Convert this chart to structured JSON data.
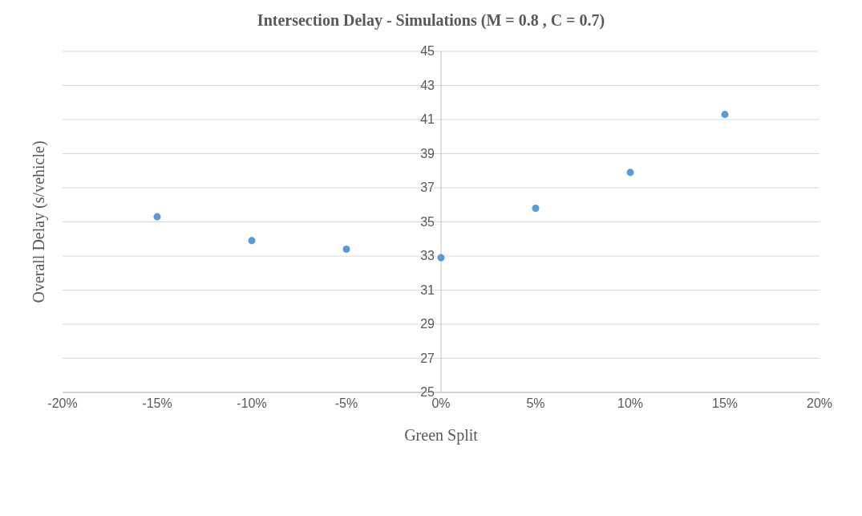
{
  "chart_data": {
    "type": "scatter",
    "title": "Intersection Delay - Simulations (M = 0.8 , C = 0.7)",
    "xlabel": "Green Split",
    "ylabel": "Overall Delay (s/vehicle)",
    "x": [
      -15,
      -10,
      -5,
      0,
      5,
      10,
      15
    ],
    "series": [
      {
        "color": "#5b9bd5",
        "values": [
          35.3,
          33.9,
          33.4,
          32.9,
          35.8,
          37.9,
          41.3
        ]
      }
    ],
    "xlim": [
      -20,
      20
    ],
    "xticks": [
      {
        "value": -20,
        "label": "-20%"
      },
      {
        "value": -15,
        "label": "-15%"
      },
      {
        "value": -10,
        "label": "-10%"
      },
      {
        "value": -5,
        "label": "-5%"
      },
      {
        "value": 0,
        "label": "0%"
      },
      {
        "value": 5,
        "label": "5%"
      },
      {
        "value": 10,
        "label": "10%"
      },
      {
        "value": 15,
        "label": "15%"
      },
      {
        "value": 20,
        "label": "20%"
      }
    ],
    "ylim": [
      25,
      45
    ],
    "yticks": [
      25,
      27,
      29,
      31,
      33,
      35,
      37,
      39,
      41,
      43,
      45
    ],
    "grid": "y",
    "legend": false,
    "marker": "circle"
  }
}
